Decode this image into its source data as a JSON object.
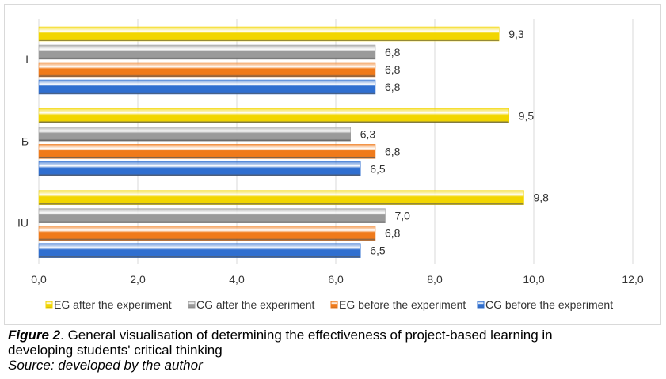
{
  "chart_data": {
    "type": "bar",
    "orientation": "horizontal",
    "categories": [
      "I",
      "Б",
      "IU"
    ],
    "series": [
      {
        "name": "EG after the experiment",
        "color": "#f2d600",
        "values": [
          9.3,
          9.5,
          9.8
        ]
      },
      {
        "name": "CG after the experiment",
        "color": "#9a9a9a",
        "values": [
          6.8,
          6.3,
          7.0
        ]
      },
      {
        "name": "EG before the experiment",
        "color": "#f07a1a",
        "values": [
          6.8,
          6.8,
          6.8
        ]
      },
      {
        "name": "CG before the experiment",
        "color": "#2f6fd0",
        "values": [
          6.8,
          6.5,
          6.5
        ]
      }
    ],
    "xlim": [
      0,
      12
    ],
    "xticks": [
      "0,0",
      "2,0",
      "4,0",
      "6,0",
      "8,0",
      "10,0",
      "12,0"
    ],
    "grid": true,
    "legend": "bottom"
  },
  "caption": {
    "label": "Figure 2",
    "text": ". General visualisation of determining the effectiveness of project-based learning in",
    "text2": "developing students' critical thinking",
    "source": "Source: developed by the author"
  }
}
